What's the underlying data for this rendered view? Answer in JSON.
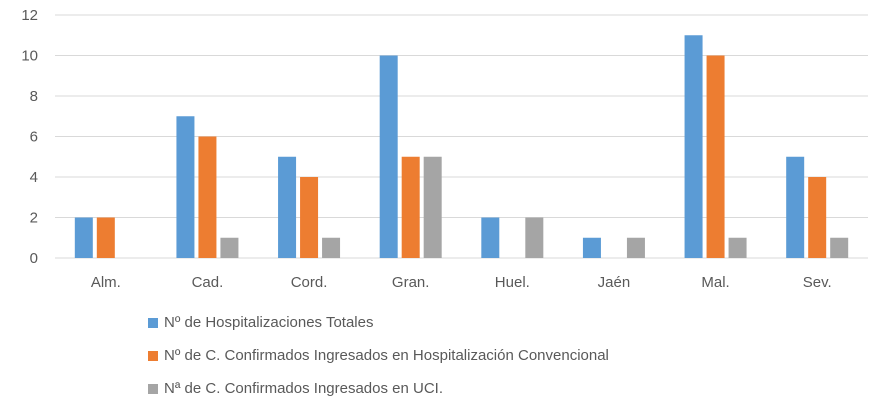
{
  "chart_data": {
    "type": "bar",
    "categories": [
      "Alm.",
      "Cad.",
      "Cord.",
      "Gran.",
      "Huel.",
      "Jaén",
      "Mal.",
      "Sev."
    ],
    "series": [
      {
        "name": "Nº de Hospitalizaciones Totales",
        "color": "#5b9bd5",
        "values": [
          2,
          7,
          5,
          10,
          2,
          1,
          11,
          5
        ]
      },
      {
        "name": "Nº de C. Confirmados Ingresados en Hospitalización Convencional",
        "color": "#ed7d31",
        "values": [
          2,
          6,
          4,
          5,
          0,
          0,
          10,
          4
        ]
      },
      {
        "name": "Nª de C. Confirmados Ingresados en UCI.",
        "color": "#a5a5a5",
        "values": [
          0,
          1,
          1,
          5,
          2,
          1,
          1,
          1
        ]
      }
    ],
    "yticks": [
      "0",
      "2",
      "4",
      "6",
      "8",
      "10",
      "12"
    ],
    "ylim": [
      0,
      12
    ],
    "grid": true,
    "legend_position": "bottom"
  }
}
